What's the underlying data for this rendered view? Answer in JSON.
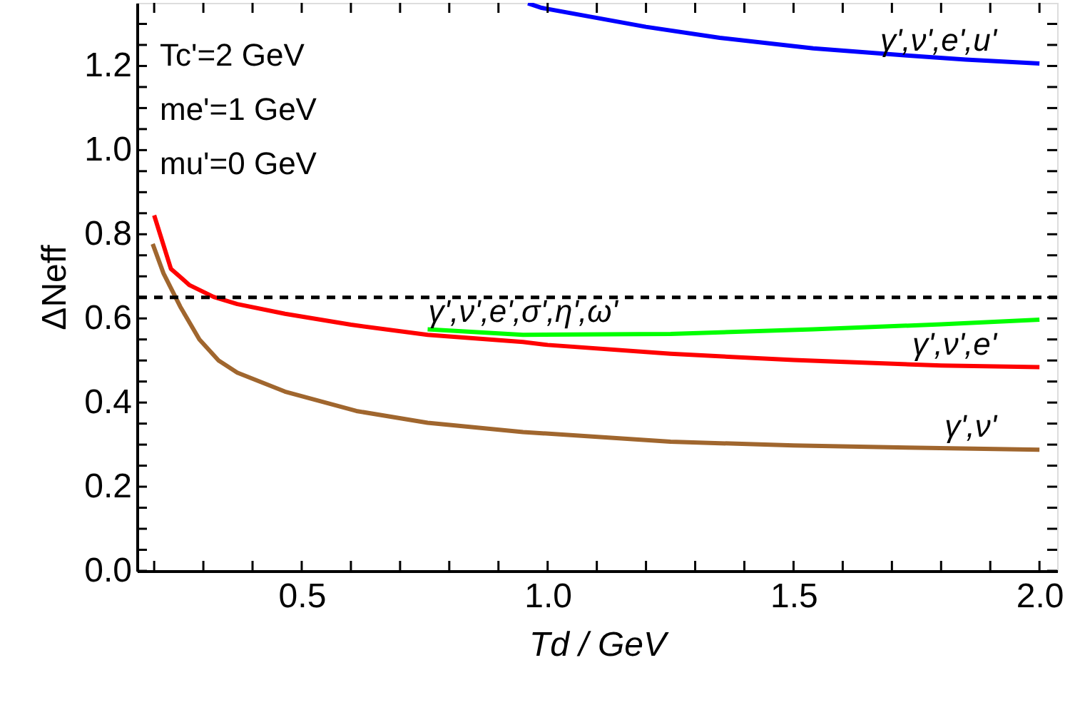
{
  "chart_data": {
    "type": "line",
    "xlabel": "Td / GeV",
    "ylabel": "ΔNeff",
    "xlim": [
      0.165,
      2.036
    ],
    "ylim": [
      0,
      1.35
    ],
    "xticks": [
      {
        "value": 0.2,
        "label": null
      },
      {
        "value": 0.3,
        "label": null
      },
      {
        "value": 0.4,
        "label": null
      },
      {
        "value": 0.5,
        "label": "0.5"
      },
      {
        "value": 0.6,
        "label": null
      },
      {
        "value": 0.7,
        "label": null
      },
      {
        "value": 0.8,
        "label": null
      },
      {
        "value": 0.9,
        "label": null
      },
      {
        "value": 1.0,
        "label": "1.0"
      },
      {
        "value": 1.1,
        "label": null
      },
      {
        "value": 1.2,
        "label": null
      },
      {
        "value": 1.3,
        "label": null
      },
      {
        "value": 1.4,
        "label": null
      },
      {
        "value": 1.5,
        "label": "1.5"
      },
      {
        "value": 1.6,
        "label": null
      },
      {
        "value": 1.7,
        "label": null
      },
      {
        "value": 1.8,
        "label": null
      },
      {
        "value": 1.9,
        "label": null
      },
      {
        "value": 2.0,
        "label": "2.0"
      }
    ],
    "yticks": [
      {
        "value": 0,
        "label": "0.0"
      },
      {
        "value": 0.05,
        "label": null
      },
      {
        "value": 0.1,
        "label": null
      },
      {
        "value": 0.15,
        "label": null
      },
      {
        "value": 0.2,
        "label": "0.2"
      },
      {
        "value": 0.25,
        "label": null
      },
      {
        "value": 0.3,
        "label": null
      },
      {
        "value": 0.35,
        "label": null
      },
      {
        "value": 0.4,
        "label": "0.4"
      },
      {
        "value": 0.45,
        "label": null
      },
      {
        "value": 0.5,
        "label": null
      },
      {
        "value": 0.55,
        "label": null
      },
      {
        "value": 0.6,
        "label": "0.6"
      },
      {
        "value": 0.65,
        "label": null
      },
      {
        "value": 0.7,
        "label": null
      },
      {
        "value": 0.75,
        "label": null
      },
      {
        "value": 0.8,
        "label": "0.8"
      },
      {
        "value": 0.85,
        "label": null
      },
      {
        "value": 0.9,
        "label": null
      },
      {
        "value": 0.95,
        "label": null
      },
      {
        "value": 1.0,
        "label": "1.0"
      },
      {
        "value": 1.05,
        "label": null
      },
      {
        "value": 1.1,
        "label": null
      },
      {
        "value": 1.15,
        "label": null
      },
      {
        "value": 1.2,
        "label": "1.2"
      },
      {
        "value": 1.25,
        "label": null
      },
      {
        "value": 1.3,
        "label": null
      }
    ],
    "grid": false,
    "legend": false,
    "line_style": "solid",
    "marker": "none",
    "series": [
      {
        "name": "γ',ν',e',u'",
        "color": "#0000ff",
        "x": [
          0.96,
          0.988,
          1.2,
          1.35,
          1.54,
          1.73,
          1.85,
          2.0
        ],
        "values": [
          1.349,
          1.338,
          1.293,
          1.267,
          1.242,
          1.225,
          1.215,
          1.206
        ]
      },
      {
        "name": "γ',ν',e',σ',η',ω'",
        "color": "#00ff00",
        "x": [
          0.756,
          0.95,
          1.25,
          1.54,
          1.8,
          2.0
        ],
        "values": [
          0.574,
          0.561,
          0.563,
          0.574,
          0.586,
          0.597
        ]
      },
      {
        "name": "γ',ν',e'",
        "color": "#ff0000",
        "x": [
          0.2,
          0.234,
          0.272,
          0.321,
          0.369,
          0.466,
          0.6,
          0.756,
          0.95,
          1.0,
          1.25,
          1.5,
          1.8,
          2.0
        ],
        "values": [
          0.845,
          0.718,
          0.679,
          0.651,
          0.634,
          0.611,
          0.585,
          0.561,
          0.544,
          0.537,
          0.516,
          0.501,
          0.488,
          0.484
        ]
      },
      {
        "name": "γ',ν'",
        "color": "#a0662e",
        "x": [
          0.197,
          0.219,
          0.253,
          0.292,
          0.331,
          0.369,
          0.466,
          0.611,
          0.756,
          0.95,
          1.25,
          1.5,
          1.73,
          2.0
        ],
        "values": [
          0.777,
          0.707,
          0.628,
          0.55,
          0.5,
          0.471,
          0.426,
          0.38,
          0.352,
          0.33,
          0.307,
          0.298,
          0.293,
          0.288
        ]
      }
    ],
    "ref_lines": [
      {
        "axis": "y",
        "value": 0.65,
        "color": "#000000",
        "line_style": "dashed"
      }
    ],
    "annotations": [
      "Tc'=2 GeV",
      "me'=1 GeV",
      "mu'=0 GeV"
    ]
  }
}
